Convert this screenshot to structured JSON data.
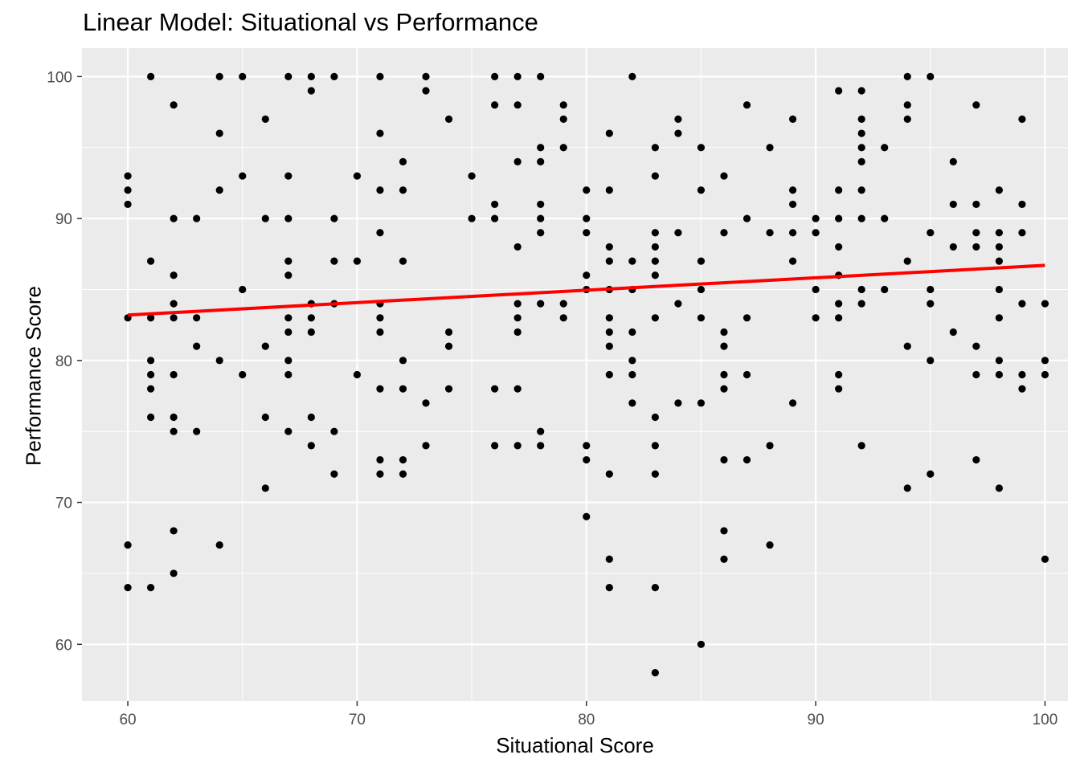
{
  "chart_data": {
    "type": "scatter",
    "title": "Linear Model: Situational vs Performance",
    "xlabel": "Situational Score",
    "ylabel": "Performance Score",
    "xlim": [
      58,
      101
    ],
    "ylim": [
      56,
      102
    ],
    "x_ticks": [
      60,
      70,
      80,
      90,
      100
    ],
    "y_ticks": [
      60,
      70,
      80,
      90,
      100
    ],
    "grid": true,
    "legend": "none",
    "colors": {
      "panel": "#EBEBEB",
      "grid": "#FFFFFF",
      "points": "#000000",
      "fit_line": "#FF0000"
    },
    "points": [
      [
        60,
        93
      ],
      [
        60,
        92
      ],
      [
        60,
        91
      ],
      [
        60,
        83
      ],
      [
        60,
        67
      ],
      [
        60,
        64
      ],
      [
        61,
        100
      ],
      [
        61,
        87
      ],
      [
        61,
        83
      ],
      [
        61,
        80
      ],
      [
        61,
        79
      ],
      [
        61,
        78
      ],
      [
        61,
        76
      ],
      [
        61,
        64
      ],
      [
        62,
        98
      ],
      [
        62,
        90
      ],
      [
        62,
        86
      ],
      [
        62,
        84
      ],
      [
        62,
        83
      ],
      [
        62,
        79
      ],
      [
        62,
        76
      ],
      [
        62,
        75
      ],
      [
        62,
        68
      ],
      [
        62,
        65
      ],
      [
        63,
        90
      ],
      [
        63,
        83
      ],
      [
        63,
        81
      ],
      [
        63,
        75
      ],
      [
        64,
        100
      ],
      [
        64,
        96
      ],
      [
        64,
        92
      ],
      [
        64,
        80
      ],
      [
        64,
        67
      ],
      [
        65,
        100
      ],
      [
        65,
        93
      ],
      [
        65,
        85
      ],
      [
        65,
        79
      ],
      [
        66,
        97
      ],
      [
        66,
        90
      ],
      [
        66,
        81
      ],
      [
        66,
        76
      ],
      [
        66,
        71
      ],
      [
        67,
        100
      ],
      [
        67,
        93
      ],
      [
        67,
        90
      ],
      [
        67,
        87
      ],
      [
        67,
        86
      ],
      [
        67,
        83
      ],
      [
        67,
        82
      ],
      [
        67,
        80
      ],
      [
        67,
        79
      ],
      [
        67,
        75
      ],
      [
        68,
        100
      ],
      [
        68,
        99
      ],
      [
        68,
        84
      ],
      [
        68,
        83
      ],
      [
        68,
        82
      ],
      [
        68,
        76
      ],
      [
        68,
        74
      ],
      [
        69,
        100
      ],
      [
        69,
        90
      ],
      [
        69,
        87
      ],
      [
        69,
        84
      ],
      [
        69,
        75
      ],
      [
        69,
        72
      ],
      [
        70,
        93
      ],
      [
        70,
        87
      ],
      [
        70,
        79
      ],
      [
        71,
        100
      ],
      [
        71,
        96
      ],
      [
        71,
        92
      ],
      [
        71,
        89
      ],
      [
        71,
        84
      ],
      [
        71,
        83
      ],
      [
        71,
        82
      ],
      [
        71,
        78
      ],
      [
        71,
        73
      ],
      [
        71,
        72
      ],
      [
        72,
        94
      ],
      [
        72,
        92
      ],
      [
        72,
        87
      ],
      [
        72,
        80
      ],
      [
        72,
        78
      ],
      [
        72,
        73
      ],
      [
        72,
        72
      ],
      [
        73,
        100
      ],
      [
        73,
        99
      ],
      [
        73,
        77
      ],
      [
        73,
        74
      ],
      [
        74,
        97
      ],
      [
        74,
        82
      ],
      [
        74,
        81
      ],
      [
        74,
        78
      ],
      [
        75,
        93
      ],
      [
        75,
        90
      ],
      [
        76,
        100
      ],
      [
        76,
        98
      ],
      [
        76,
        91
      ],
      [
        76,
        90
      ],
      [
        76,
        78
      ],
      [
        76,
        74
      ],
      [
        77,
        100
      ],
      [
        77,
        98
      ],
      [
        77,
        94
      ],
      [
        77,
        88
      ],
      [
        77,
        84
      ],
      [
        77,
        83
      ],
      [
        77,
        82
      ],
      [
        77,
        78
      ],
      [
        77,
        74
      ],
      [
        78,
        100
      ],
      [
        78,
        95
      ],
      [
        78,
        94
      ],
      [
        78,
        91
      ],
      [
        78,
        90
      ],
      [
        78,
        89
      ],
      [
        78,
        84
      ],
      [
        78,
        75
      ],
      [
        78,
        74
      ],
      [
        79,
        98
      ],
      [
        79,
        97
      ],
      [
        79,
        95
      ],
      [
        79,
        84
      ],
      [
        79,
        83
      ],
      [
        80,
        92
      ],
      [
        80,
        90
      ],
      [
        80,
        89
      ],
      [
        80,
        86
      ],
      [
        80,
        85
      ],
      [
        80,
        74
      ],
      [
        80,
        73
      ],
      [
        80,
        69
      ],
      [
        81,
        88
      ],
      [
        81,
        87
      ],
      [
        81,
        85
      ],
      [
        81,
        83
      ],
      [
        81,
        82
      ],
      [
        81,
        81
      ],
      [
        81,
        79
      ],
      [
        81,
        72
      ],
      [
        81,
        66
      ],
      [
        81,
        64
      ],
      [
        81,
        96
      ],
      [
        81,
        92
      ],
      [
        82,
        100
      ],
      [
        82,
        87
      ],
      [
        82,
        85
      ],
      [
        82,
        82
      ],
      [
        82,
        80
      ],
      [
        82,
        79
      ],
      [
        82,
        77
      ],
      [
        83,
        95
      ],
      [
        83,
        93
      ],
      [
        83,
        89
      ],
      [
        83,
        88
      ],
      [
        83,
        87
      ],
      [
        83,
        86
      ],
      [
        83,
        83
      ],
      [
        83,
        76
      ],
      [
        83,
        74
      ],
      [
        83,
        72
      ],
      [
        83,
        64
      ],
      [
        83,
        58
      ],
      [
        84,
        97
      ],
      [
        84,
        96
      ],
      [
        84,
        89
      ],
      [
        84,
        84
      ],
      [
        84,
        77
      ],
      [
        85,
        95
      ],
      [
        85,
        92
      ],
      [
        85,
        87
      ],
      [
        85,
        85
      ],
      [
        85,
        83
      ],
      [
        85,
        77
      ],
      [
        85,
        60
      ],
      [
        86,
        93
      ],
      [
        86,
        89
      ],
      [
        86,
        82
      ],
      [
        86,
        81
      ],
      [
        86,
        79
      ],
      [
        86,
        78
      ],
      [
        86,
        73
      ],
      [
        86,
        68
      ],
      [
        86,
        66
      ],
      [
        87,
        98
      ],
      [
        87,
        90
      ],
      [
        87,
        83
      ],
      [
        87,
        79
      ],
      [
        87,
        73
      ],
      [
        88,
        95
      ],
      [
        88,
        89
      ],
      [
        88,
        74
      ],
      [
        88,
        67
      ],
      [
        89,
        97
      ],
      [
        89,
        92
      ],
      [
        89,
        91
      ],
      [
        89,
        89
      ],
      [
        89,
        87
      ],
      [
        89,
        77
      ],
      [
        90,
        90
      ],
      [
        90,
        89
      ],
      [
        90,
        85
      ],
      [
        90,
        83
      ],
      [
        91,
        99
      ],
      [
        91,
        92
      ],
      [
        91,
        90
      ],
      [
        91,
        88
      ],
      [
        91,
        86
      ],
      [
        91,
        84
      ],
      [
        91,
        83
      ],
      [
        91,
        79
      ],
      [
        91,
        78
      ],
      [
        92,
        99
      ],
      [
        92,
        97
      ],
      [
        92,
        96
      ],
      [
        92,
        95
      ],
      [
        92,
        94
      ],
      [
        92,
        92
      ],
      [
        92,
        90
      ],
      [
        92,
        85
      ],
      [
        92,
        84
      ],
      [
        92,
        74
      ],
      [
        93,
        95
      ],
      [
        93,
        90
      ],
      [
        93,
        85
      ],
      [
        94,
        100
      ],
      [
        94,
        98
      ],
      [
        94,
        97
      ],
      [
        94,
        87
      ],
      [
        94,
        81
      ],
      [
        94,
        71
      ],
      [
        95,
        100
      ],
      [
        95,
        89
      ],
      [
        95,
        85
      ],
      [
        95,
        84
      ],
      [
        95,
        80
      ],
      [
        95,
        72
      ],
      [
        96,
        94
      ],
      [
        96,
        91
      ],
      [
        96,
        88
      ],
      [
        96,
        82
      ],
      [
        97,
        98
      ],
      [
        97,
        91
      ],
      [
        97,
        89
      ],
      [
        97,
        88
      ],
      [
        97,
        81
      ],
      [
        97,
        79
      ],
      [
        97,
        73
      ],
      [
        98,
        92
      ],
      [
        98,
        89
      ],
      [
        98,
        88
      ],
      [
        98,
        87
      ],
      [
        98,
        85
      ],
      [
        98,
        83
      ],
      [
        98,
        80
      ],
      [
        98,
        79
      ],
      [
        98,
        71
      ],
      [
        99,
        97
      ],
      [
        99,
        91
      ],
      [
        99,
        89
      ],
      [
        99,
        84
      ],
      [
        99,
        79
      ],
      [
        99,
        78
      ],
      [
        100,
        84
      ],
      [
        100,
        80
      ],
      [
        100,
        79
      ],
      [
        100,
        66
      ]
    ],
    "fit_line": {
      "x": [
        60,
        100
      ],
      "y": [
        83.2,
        86.7
      ]
    }
  }
}
